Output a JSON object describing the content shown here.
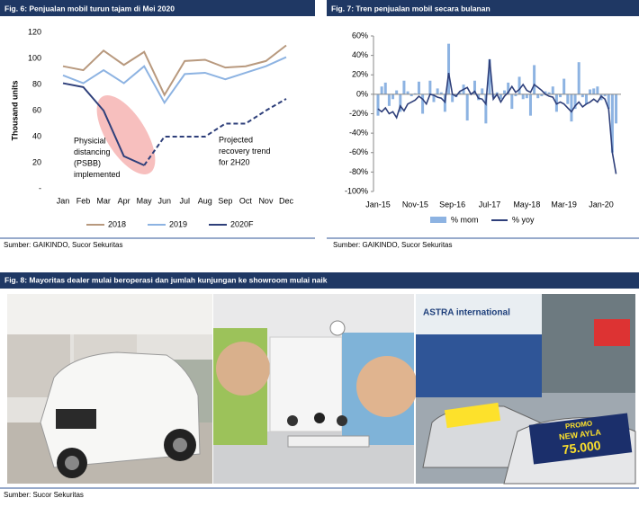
{
  "charts": [
    {
      "chart_data": {
        "type": "line",
        "title": "Fig. 6: Penjualan mobil turun tajam di Mei 2020",
        "ylabel": "Thousand units",
        "categories": [
          "Jan",
          "Feb",
          "Mar",
          "Apr",
          "May",
          "Jun",
          "Jul",
          "Aug",
          "Sep",
          "Oct",
          "Nov",
          "Dec"
        ],
        "series": [
          {
            "name": "2018",
            "color": "#b8997e",
            "values": [
              94,
              91,
              106,
              95,
              105,
              72,
              98,
              99,
              93,
              94,
              98,
              110
            ]
          },
          {
            "name": "2019",
            "color": "#8db3e2",
            "values": [
              87,
              81,
              91,
              81,
              94,
              66,
              88,
              89,
              84,
              89,
              94,
              101
            ]
          },
          {
            "name": "2020F",
            "color": "#2e3f7a",
            "values": [
              81,
              78,
              60,
              25,
              18,
              40,
              40,
              40,
              50,
              50,
              60,
              69
            ],
            "dashed_from": 4
          }
        ],
        "ylim": [
          0,
          120
        ],
        "yticks": [
          {
            "value": 0,
            "label": "-"
          },
          20,
          40,
          60,
          80,
          100,
          120
        ],
        "legend": "bottom",
        "annotations": [
          {
            "lines": [
              "Physicial",
              "distancing",
              "(PSBB)",
              "implemented"
            ]
          },
          {
            "lines": [
              "Projected",
              "recovery trend",
              "for 2H20"
            ]
          }
        ]
      },
      "source": "Sumber: GAIKINDO, Sucor Sekuritas"
    },
    {
      "chart_data": {
        "type": "combo",
        "title": "Fig. 7: Tren penjualan mobil secara bulanan",
        "categories": [
          "Jan-15",
          null,
          null,
          null,
          null,
          null,
          null,
          null,
          null,
          null,
          "Nov-15",
          null,
          null,
          null,
          null,
          null,
          null,
          null,
          null,
          null,
          "Sep-16",
          null,
          null,
          null,
          null,
          null,
          null,
          null,
          null,
          null,
          "Jul-17",
          null,
          null,
          null,
          null,
          null,
          null,
          null,
          null,
          null,
          "May-18",
          null,
          null,
          null,
          null,
          null,
          null,
          null,
          null,
          null,
          "Mar-19",
          null,
          null,
          null,
          null,
          null,
          null,
          null,
          null,
          null,
          "Jan-20",
          null,
          null,
          null,
          null
        ],
        "series": [
          {
            "name": "% mom",
            "kind": "bar",
            "color": "#8db3e2",
            "values": [
              -22,
              8,
              12,
              -12,
              -5,
              4,
              -18,
              14,
              3,
              -2,
              1,
              13,
              -20,
              0,
              14,
              -8,
              6,
              2,
              -18,
              52,
              -8,
              -3,
              2,
              10,
              -27,
              1,
              14,
              -6,
              6,
              -30,
              36,
              -3,
              2,
              -5,
              4,
              12,
              -15,
              -2,
              18,
              -5,
              -4,
              -22,
              30,
              -4,
              -2,
              3,
              2,
              8,
              -18,
              -3,
              16,
              -10,
              -28,
              -15,
              33,
              -3,
              -10,
              5,
              6,
              8,
              -6,
              -2,
              -15,
              -60,
              -30
            ]
          },
          {
            "name": "% yoy",
            "kind": "line",
            "color": "#2e3f7a",
            "values": [
              -15,
              -18,
              -14,
              -20,
              -18,
              -24,
              -12,
              -17,
              -10,
              -8,
              -6,
              -2,
              -5,
              -10,
              0,
              -1,
              -3,
              -4,
              -8,
              22,
              0,
              -2,
              3,
              5,
              7,
              0,
              3,
              -4,
              -5,
              -10,
              36,
              -5,
              0,
              -8,
              -2,
              2,
              8,
              2,
              5,
              10,
              4,
              2,
              10,
              7,
              4,
              0,
              -2,
              -3,
              -10,
              -8,
              -10,
              -14,
              -18,
              -12,
              -8,
              -13,
              -10,
              -8,
              -5,
              -8,
              -2,
              -5,
              -15,
              -60,
              -82
            ]
          }
        ],
        "ylim": [
          -100,
          60
        ],
        "yticks": [
          {
            "value": -100,
            "label": "-100%"
          },
          {
            "value": -80,
            "label": "-80%"
          },
          {
            "value": -60,
            "label": "-60%"
          },
          {
            "value": -40,
            "label": "-40%"
          },
          {
            "value": -20,
            "label": "-20%"
          },
          {
            "value": 0,
            "label": "0%"
          },
          {
            "value": 20,
            "label": "20%"
          },
          {
            "value": 40,
            "label": "40%"
          },
          {
            "value": 60,
            "label": "60%"
          }
        ],
        "legend": "bottom"
      },
      "source": "Sumber: GAIKINDO, Sucor Sekuritas"
    }
  ],
  "figure8": {
    "title": "Fig. 8: Mayoritas dealer mulai beroperasi dan jumlah kunjungan ke showroom mulai naik",
    "photo_texts": [
      "ASTRA international",
      "PROMO",
      "NEW AYLA",
      "75.000"
    ],
    "source": "Sumber: Sucor Sekuritas"
  }
}
